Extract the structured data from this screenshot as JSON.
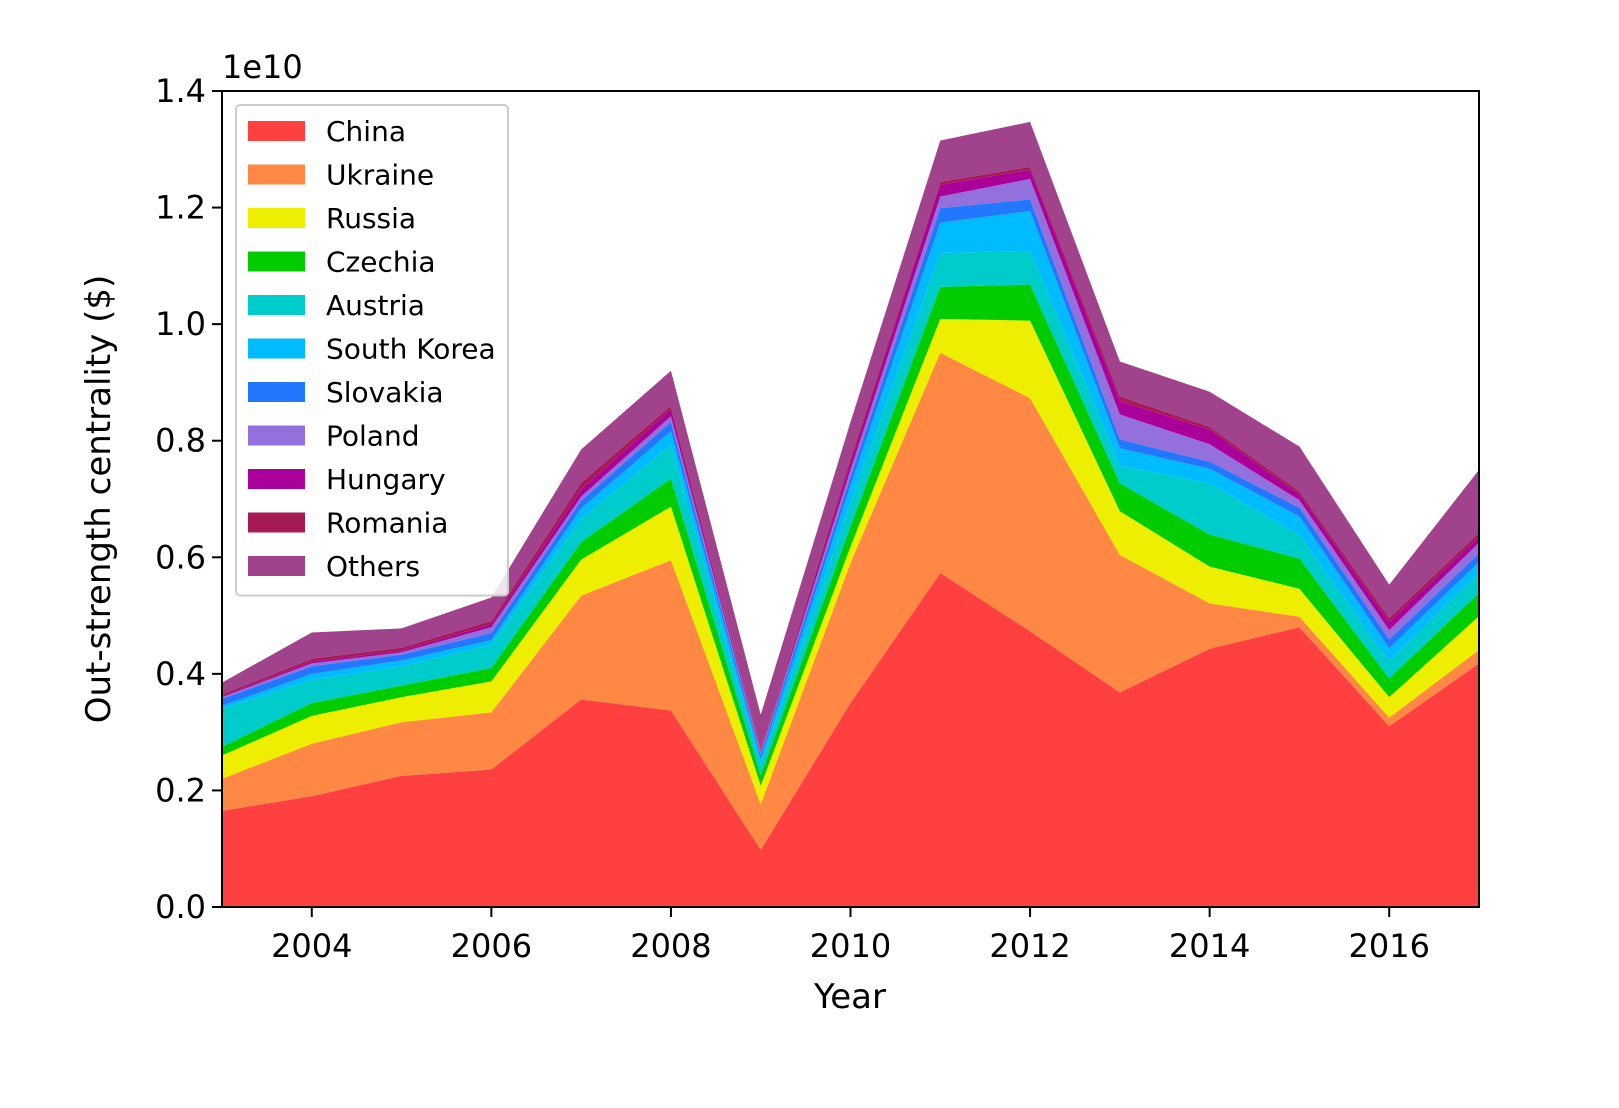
{
  "chart_data": {
    "type": "area",
    "stacked": true,
    "title": "",
    "xlabel": "Year",
    "ylabel": "Out-strength centrality ($)",
    "y_offset_label": "1e10",
    "xlim": [
      2003,
      2017
    ],
    "ylim": [
      0.0,
      1.4
    ],
    "x": [
      2003,
      2004,
      2005,
      2006,
      2007,
      2008,
      2009,
      2010,
      2011,
      2012,
      2013,
      2014,
      2015,
      2016,
      2017
    ],
    "x_ticks": [
      2004,
      2006,
      2008,
      2010,
      2012,
      2014,
      2016
    ],
    "x_tick_labels": [
      "2004",
      "2006",
      "2008",
      "2010",
      "2012",
      "2014",
      "2016"
    ],
    "y_ticks": [
      0.0,
      0.2,
      0.4,
      0.6,
      0.8,
      1.0,
      1.2,
      1.4
    ],
    "y_tick_labels": [
      "0.0",
      "0.2",
      "0.4",
      "0.6",
      "0.8",
      "1.0",
      "1.2",
      "1.4"
    ],
    "legend_position": "top-left",
    "series": [
      {
        "name": "China",
        "color": "#ff4040",
        "values": [
          0.165,
          0.19,
          0.225,
          0.236,
          0.356,
          0.337,
          0.098,
          0.35,
          0.573,
          0.473,
          0.368,
          0.443,
          0.48,
          0.31,
          0.418
        ]
      },
      {
        "name": "Ukraine",
        "color": "#ff8844",
        "values": [
          0.055,
          0.09,
          0.092,
          0.098,
          0.178,
          0.258,
          0.078,
          0.24,
          0.378,
          0.4,
          0.236,
          0.078,
          0.018,
          0.015,
          0.023
        ]
      },
      {
        "name": "Russia",
        "color": "#eeee00",
        "values": [
          0.04,
          0.048,
          0.043,
          0.053,
          0.062,
          0.092,
          0.032,
          0.028,
          0.058,
          0.133,
          0.075,
          0.063,
          0.048,
          0.035,
          0.058
        ]
      },
      {
        "name": "Czechia",
        "color": "#00cc00",
        "values": [
          0.015,
          0.022,
          0.02,
          0.023,
          0.03,
          0.048,
          0.018,
          0.035,
          0.055,
          0.062,
          0.048,
          0.055,
          0.052,
          0.032,
          0.04
        ]
      },
      {
        "name": "Austria",
        "color": "#00cccc",
        "values": [
          0.065,
          0.04,
          0.033,
          0.04,
          0.04,
          0.058,
          0.018,
          0.04,
          0.058,
          0.058,
          0.03,
          0.088,
          0.04,
          0.03,
          0.035
        ]
      },
      {
        "name": "South Korea",
        "color": "#00bbff",
        "values": [
          0.005,
          0.01,
          0.01,
          0.008,
          0.018,
          0.023,
          0.009,
          0.03,
          0.052,
          0.068,
          0.03,
          0.025,
          0.032,
          0.022,
          0.018
        ]
      },
      {
        "name": "Slovakia",
        "color": "#2277ff",
        "values": [
          0.012,
          0.013,
          0.01,
          0.012,
          0.013,
          0.016,
          0.008,
          0.015,
          0.025,
          0.02,
          0.015,
          0.012,
          0.015,
          0.015,
          0.015
        ]
      },
      {
        "name": "Poland",
        "color": "#9370db",
        "values": [
          0.003,
          0.005,
          0.004,
          0.01,
          0.007,
          0.01,
          0.004,
          0.012,
          0.02,
          0.035,
          0.043,
          0.03,
          0.013,
          0.016,
          0.018
        ]
      },
      {
        "name": "Hungary",
        "color": "#aa0099",
        "values": [
          0.002,
          0.003,
          0.003,
          0.005,
          0.012,
          0.012,
          0.002,
          0.012,
          0.02,
          0.016,
          0.023,
          0.025,
          0.01,
          0.014,
          0.01
        ]
      },
      {
        "name": "Romania",
        "color": "#a61b55",
        "values": [
          0.003,
          0.005,
          0.005,
          0.006,
          0.012,
          0.006,
          0.002,
          0.008,
          0.005,
          0.005,
          0.008,
          0.005,
          0.005,
          0.007,
          0.007
        ]
      },
      {
        "name": "Others",
        "color": "#a0428c",
        "values": [
          0.02,
          0.045,
          0.033,
          0.04,
          0.057,
          0.06,
          0.061,
          0.062,
          0.071,
          0.077,
          0.06,
          0.06,
          0.077,
          0.057,
          0.108
        ]
      }
    ]
  }
}
